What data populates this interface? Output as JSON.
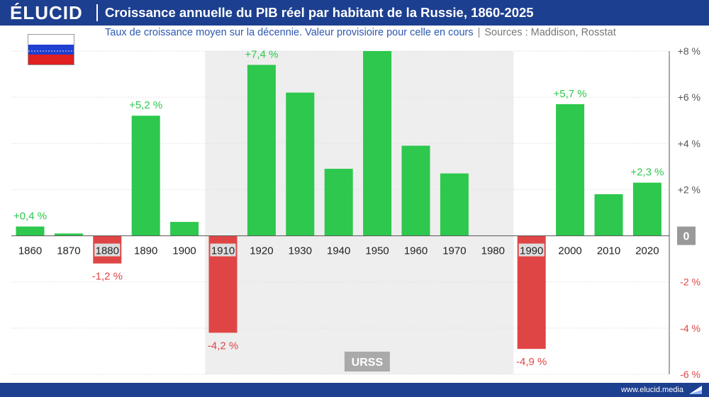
{
  "header": {
    "logo": "ÉLUCID",
    "title": "Croissance annuelle du PIB réel par habitant de la Russie, 1860-2025",
    "subtitle": "Taux de croissance moyen sur la décennie. Valeur provisioire pour celle en cours",
    "sources": "Sources : Maddison, Rosstat",
    "separator": "|"
  },
  "flag": {
    "colors": [
      "#ffffff",
      "#1f3fd0",
      "#e02020"
    ]
  },
  "footer": {
    "url": "www.elucid.media"
  },
  "colors": {
    "positive": "#2dc84d",
    "negative": "#e04545",
    "axis": "#555555",
    "shade": "#eeeeee",
    "label_positive": "#2dc84d",
    "label_negative": "#e04545"
  },
  "chart_data": {
    "type": "bar",
    "categories": [
      "1860",
      "1870",
      "1880",
      "1890",
      "1900",
      "1910",
      "1920",
      "1930",
      "1940",
      "1950",
      "1960",
      "1970",
      "1980",
      "1990",
      "2000",
      "2010",
      "2020"
    ],
    "values": [
      0.4,
      0.1,
      -1.2,
      5.2,
      0.6,
      -4.2,
      7.4,
      6.2,
      2.9,
      8.0,
      3.9,
      2.7,
      0.0,
      -4.9,
      5.7,
      1.8,
      2.3
    ],
    "data_labels": [
      {
        "category": "1860",
        "text": "+0,4 %"
      },
      {
        "category": "1880",
        "text": "-1,2 %"
      },
      {
        "category": "1890",
        "text": "+5,2 %"
      },
      {
        "category": "1910",
        "text": "-4,2 %"
      },
      {
        "category": "1920",
        "text": "+7,4 %"
      },
      {
        "category": "1990",
        "text": "-4,9 %"
      },
      {
        "category": "2000",
        "text": "+5,7 %"
      },
      {
        "category": "2020",
        "text": "+2,3 %"
      }
    ],
    "y_ticks": [
      {
        "value": 8,
        "label": "+8 %"
      },
      {
        "value": 6,
        "label": "+6 %"
      },
      {
        "value": 4,
        "label": "+4 %"
      },
      {
        "value": 2,
        "label": "+2 %"
      },
      {
        "value": 0,
        "label": "0"
      },
      {
        "value": -2,
        "label": "-2 %"
      },
      {
        "value": -4,
        "label": "-4 %"
      },
      {
        "value": -6,
        "label": "-6 %"
      }
    ],
    "ylim": [
      -6,
      8
    ],
    "shaded_period": {
      "label": "URSS",
      "start": "1910",
      "end": "1980"
    },
    "highlighted_categories": [
      "1880",
      "1910",
      "1990"
    ],
    "grid": true,
    "title": "Croissance annuelle du PIB réel par habitant de la Russie, 1860-2025"
  }
}
